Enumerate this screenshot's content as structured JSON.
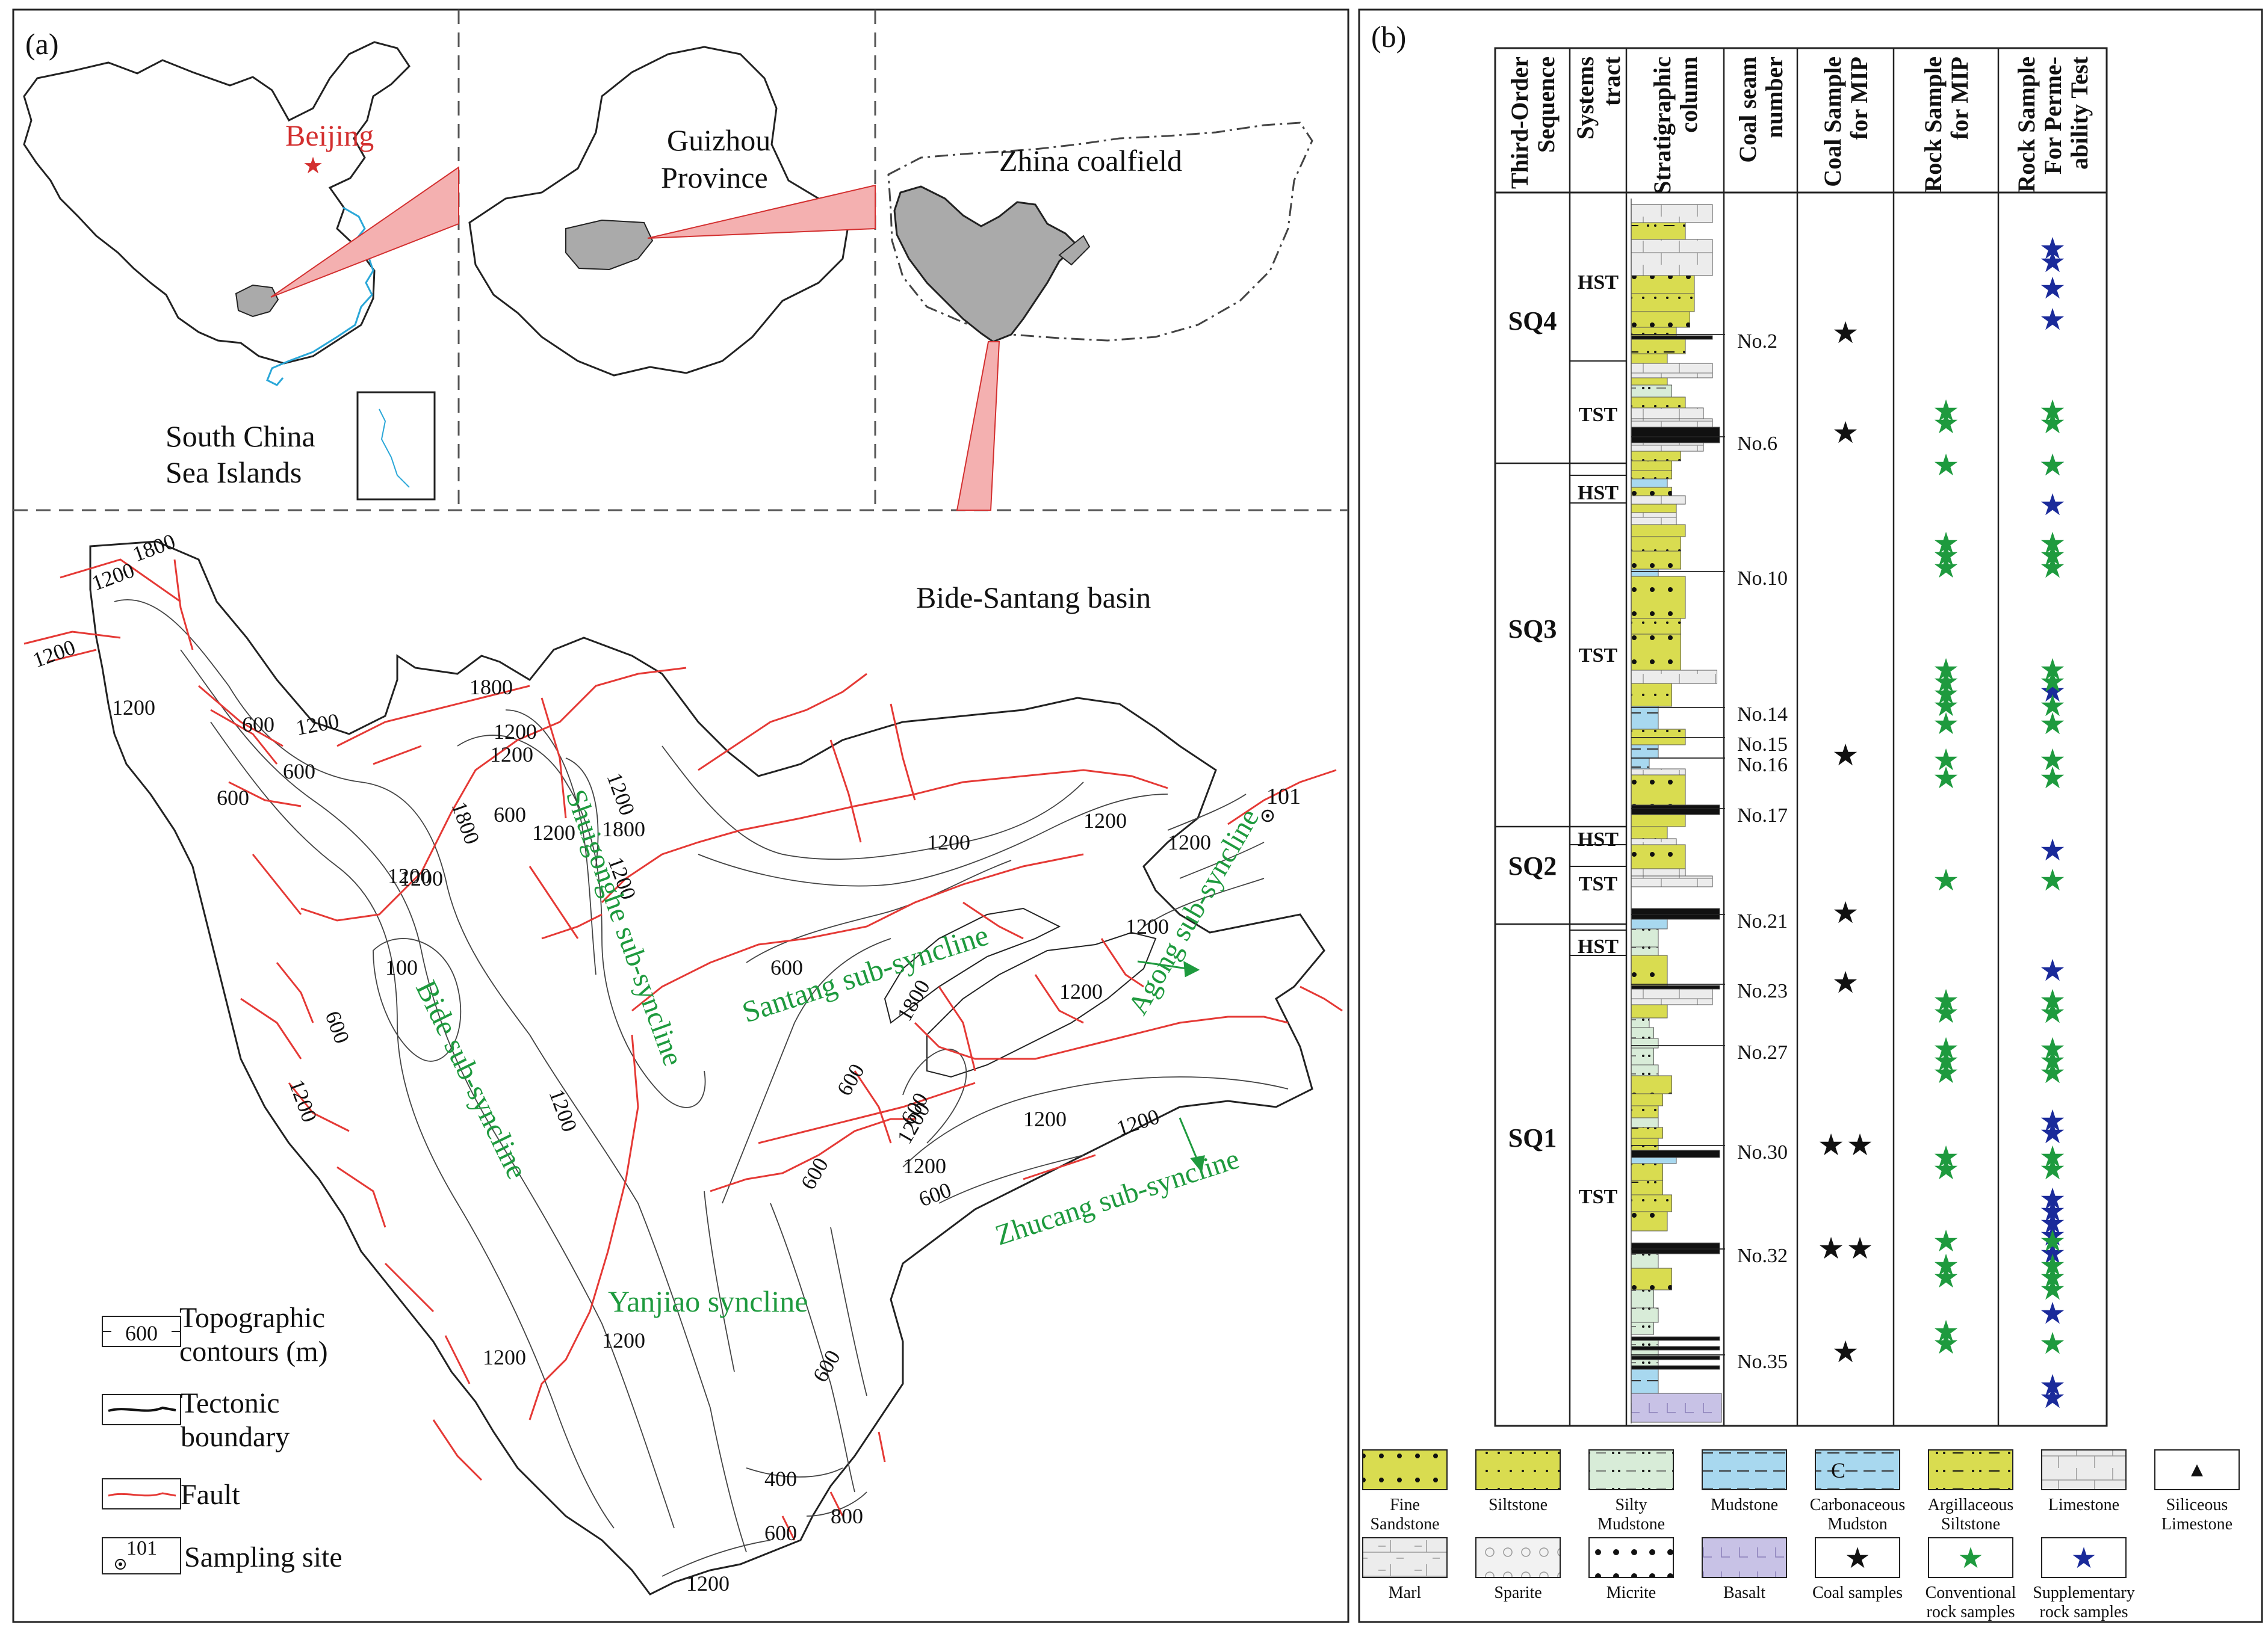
{
  "panel_a": {
    "label": "(a)",
    "beijing": "Beijing",
    "scs_line1": "South China",
    "scs_line2": "Sea Islands",
    "guizhou_line1": "Guizhou",
    "guizhou_line2": "Province",
    "zhina": "Zhina coalfield",
    "basin": "Bide-Santang basin",
    "synclines": [
      "Shuigonghe sub-syncline",
      "Santang sub-syncline",
      "Agong sub-syncline",
      "Bide sub-syncline",
      "Zhucang sub-syncline",
      "Yanjiao syncline"
    ],
    "contour_labels": [
      "1800",
      "1200",
      "1200",
      "1200",
      "600",
      "1200",
      "600",
      "600",
      "1200",
      "1800",
      "1200",
      "1800",
      "1200",
      "1200",
      "1200",
      "1200",
      "1800",
      "1200",
      "600",
      "1200",
      "1200",
      "600",
      "100",
      "600",
      "1200",
      "1200",
      "1800",
      "1200",
      "1200",
      "1200",
      "600",
      "1200",
      "1200",
      "600",
      "1200",
      "1200",
      "600",
      "600",
      "600",
      "1200",
      "1200",
      "400",
      "800",
      "600",
      "1200"
    ],
    "site_label": "101",
    "legend": {
      "contour_sample": "600",
      "contour_line1": "Topographic",
      "contour_line2": "contours  (m)",
      "tectonic_line1": "Tectonic",
      "tectonic_line2": "boundary",
      "fault": "Fault",
      "site_sample": "101",
      "site": "Sampling site"
    }
  },
  "panel_b": {
    "label": "(b)",
    "headers": [
      [
        "Third-Order",
        "Sequence"
      ],
      [
        "Systems",
        "tract"
      ],
      [
        "Stratigraphic",
        "column"
      ],
      [
        "Coal seam",
        "number"
      ],
      [
        "Coal Sample",
        "for MIP"
      ],
      [
        "Rock Sample",
        "for MIP"
      ],
      [
        "Rock Sample",
        "For Perme-",
        "ability Test"
      ]
    ],
    "sequences": [
      "SQ4",
      "SQ3",
      "SQ2",
      "SQ1"
    ],
    "tracts": [
      "HST",
      "TST",
      "HST",
      "TST",
      "HST",
      "TST",
      "HST",
      "TST"
    ],
    "seams": [
      "No.2",
      "No.6",
      "No.10",
      "No.14",
      "No.15",
      "No.16",
      "No.17",
      "No.21",
      "No.23",
      "No.27",
      "No.30",
      "No.32",
      "No.35"
    ],
    "star_glyph": "★",
    "legend": [
      {
        "label": "Fine Sandstone",
        "lines": [
          "Fine",
          "Sandstone"
        ],
        "fill": "#d9dc50"
      },
      {
        "label": "Siltstone",
        "lines": [
          "Siltstone"
        ],
        "fill": "#d9dc50"
      },
      {
        "label": "Silty Mudstone",
        "lines": [
          "Silty",
          "Mudstone"
        ],
        "fill": "#d8ecd8"
      },
      {
        "label": "Mudstone",
        "lines": [
          "Mudstone"
        ],
        "fill": "#a8d8ef"
      },
      {
        "label": "Carbonaceous Mudston",
        "lines": [
          "Carbonaceous",
          "Mudston"
        ],
        "fill": "#a8d8ef",
        "mark": "C"
      },
      {
        "label": "Argillaceous Siltstone",
        "lines": [
          "Argillaceous",
          "Siltstone"
        ],
        "fill": "#d9dc50"
      },
      {
        "label": "Limestone",
        "lines": [
          "Limestone"
        ],
        "fill": "#ececec"
      },
      {
        "label": "Siliceous Limestone",
        "lines": [
          "Siliceous",
          "Limestone"
        ],
        "fill": "#ececec"
      },
      {
        "label": "Marl",
        "lines": [
          "Marl"
        ],
        "fill": "#ececec"
      },
      {
        "label": "Sparite",
        "lines": [
          "Sparite"
        ],
        "fill": "#f2f2f2"
      },
      {
        "label": "Micrite",
        "lines": [
          "Micrite"
        ],
        "fill": "#ffffff"
      },
      {
        "label": "Basalt",
        "lines": [
          "Basalt"
        ],
        "fill": "#c8c2e6"
      },
      {
        "label": "Coal samples",
        "lines": [
          "Coal samples"
        ],
        "fill": "#ffffff"
      },
      {
        "label": "Conventional rock samples",
        "lines": [
          "Conventional",
          "rock samples"
        ],
        "fill": "#ffffff"
      },
      {
        "label": "Supplementary rock samples",
        "lines": [
          "Supplementary",
          "rock samples"
        ],
        "fill": "#ffffff"
      }
    ],
    "colors": {
      "coal": "#111111",
      "conventional": "#1e9a3e",
      "supplementary": "#1a2a9a"
    }
  }
}
